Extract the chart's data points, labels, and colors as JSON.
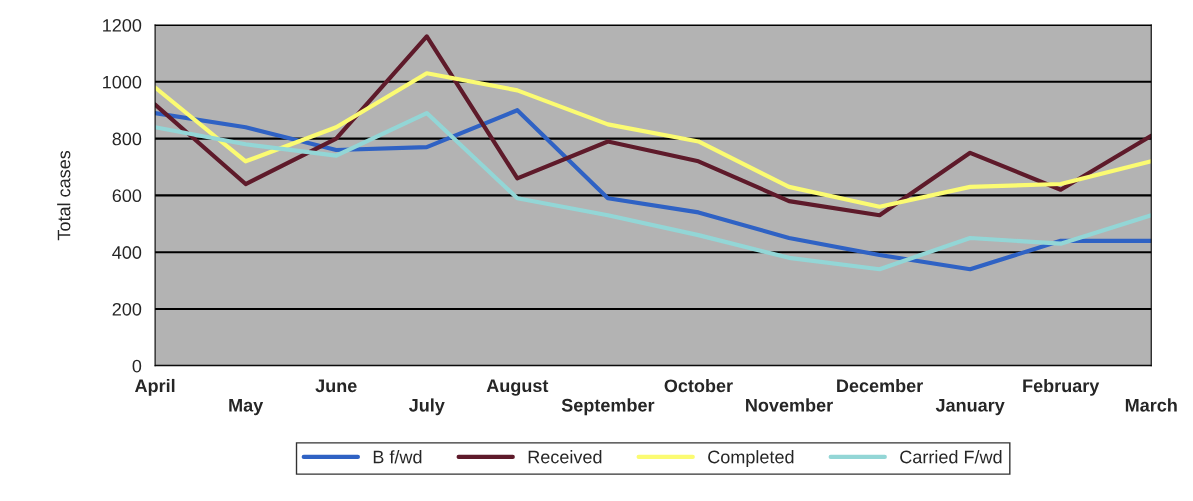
{
  "chart_data": {
    "type": "line",
    "ylabel": "Total cases",
    "categories": [
      "April",
      "May",
      "June",
      "July",
      "August",
      "September",
      "October",
      "November",
      "December",
      "January",
      "February",
      "March"
    ],
    "series": [
      {
        "name": "B f/wd",
        "color": "#2f62c4",
        "values": [
          890,
          840,
          760,
          770,
          900,
          590,
          540,
          450,
          390,
          340,
          440,
          440
        ]
      },
      {
        "name": "Received",
        "color": "#5e1a2a",
        "values": [
          920,
          640,
          800,
          1160,
          660,
          790,
          720,
          580,
          530,
          750,
          620,
          810
        ]
      },
      {
        "name": "Completed",
        "color": "#fbfb72",
        "values": [
          980,
          720,
          840,
          1030,
          970,
          850,
          790,
          630,
          560,
          630,
          640,
          720
        ]
      },
      {
        "name": "Carried F/wd",
        "color": "#93d6d6",
        "values": [
          840,
          780,
          740,
          890,
          590,
          530,
          460,
          380,
          340,
          450,
          430,
          530
        ]
      }
    ],
    "ylim": [
      0,
      1200
    ],
    "yticks": [
      0,
      200,
      400,
      600,
      800,
      1000,
      1200
    ],
    "grid": "y",
    "legend": "bottom",
    "marker": "none",
    "line_style": "solid"
  }
}
